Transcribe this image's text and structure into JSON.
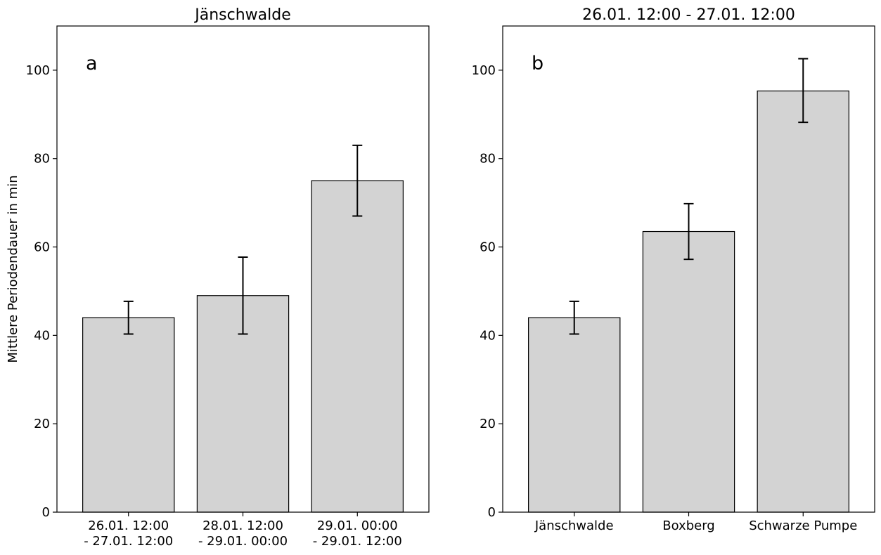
{
  "chart_data": [
    {
      "type": "bar",
      "title": "Jänschwalde",
      "panel_label": "a",
      "ylabel": "Mittlere Periodendauer in min",
      "xlabel": "",
      "ylim": [
        0,
        110
      ],
      "yticks": [
        0,
        20,
        40,
        60,
        80,
        100
      ],
      "grid": false,
      "categories": [
        [
          "26.01. 12:00",
          "- 27.01. 12:00"
        ],
        [
          "28.01. 12:00",
          "- 29.01. 00:00"
        ],
        [
          "29.01. 00:00",
          "- 29.01. 12:00"
        ]
      ],
      "values": [
        44,
        49,
        75
      ],
      "error_low": [
        40.3,
        40.3,
        67
      ],
      "error_high": [
        47.7,
        57.7,
        83
      ],
      "bar_color": "#d3d3d3",
      "edge_color": "#000000"
    },
    {
      "type": "bar",
      "title": "26.01. 12:00 - 27.01. 12:00",
      "panel_label": "b",
      "ylabel": "",
      "xlabel": "",
      "ylim": [
        0,
        110
      ],
      "yticks": [
        0,
        20,
        40,
        60,
        80,
        100
      ],
      "grid": false,
      "categories": [
        [
          "Jänschwalde"
        ],
        [
          "Boxberg"
        ],
        [
          "Schwarze Pumpe"
        ]
      ],
      "values": [
        44,
        63.5,
        95.3
      ],
      "error_low": [
        40.3,
        57.2,
        88.2
      ],
      "error_high": [
        47.7,
        69.8,
        102.6
      ],
      "bar_color": "#d3d3d3",
      "edge_color": "#000000"
    }
  ]
}
